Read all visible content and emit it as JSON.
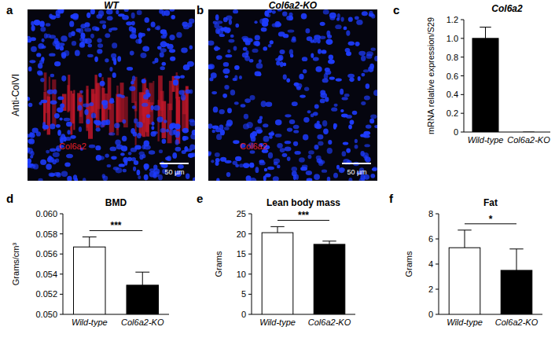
{
  "images": [
    {
      "panel_label": "a",
      "title": "WT",
      "side_label": "Anti-ColVI",
      "stain_label": "Col6a2",
      "scale_bar": "50 µm",
      "stained": true
    },
    {
      "panel_label": "b",
      "title": "Col6a2-KO",
      "stain_label": "Col6a2",
      "scale_bar": "50 µm",
      "stained": false
    }
  ],
  "chart_data": [
    {
      "type": "bar",
      "panel_label": "c",
      "title": "Col6a2",
      "y_label": "mRNA relative expression/S29",
      "categories": [
        "Wild-type",
        "Col6a2-KO"
      ],
      "values": [
        1.0,
        0
      ],
      "errors": [
        0.12,
        0
      ],
      "colors": [
        "#000000",
        "#000000"
      ],
      "ylim": [
        0,
        1.2
      ],
      "yticks": [
        0,
        {
          "value": 0.2,
          "label": "0.2"
        },
        {
          "value": 0.4,
          "label": "0.4"
        },
        {
          "value": 0.6,
          "label": "0.6"
        },
        {
          "value": 0.8,
          "label": "0.8"
        },
        {
          "value": 1,
          "label": "1.0"
        },
        {
          "value": 1.2,
          "label": "1.2"
        }
      ]
    },
    {
      "type": "bar",
      "panel_label": "d",
      "title": "BMD",
      "y_label": "Grams/cm³",
      "categories": [
        "Wild-type",
        "Col6a2-KO"
      ],
      "values": [
        0.0567,
        0.0529
      ],
      "errors": [
        0.001,
        0.0013
      ],
      "colors": [
        "#ffffff",
        "#000000"
      ],
      "ylim": [
        0.05,
        0.06
      ],
      "significance": "***",
      "yticks": [
        {
          "value": 0.05,
          "label": "0.050"
        },
        {
          "value": 0.052,
          "label": "0.052"
        },
        {
          "value": 0.054,
          "label": "0.054"
        },
        {
          "value": 0.056,
          "label": "0.056"
        },
        {
          "value": 0.058,
          "label": "0.058"
        },
        {
          "value": 0.06,
          "label": "0.060"
        }
      ]
    },
    {
      "type": "bar",
      "panel_label": "e",
      "title": "Lean body mass",
      "y_label": "Grams",
      "categories": [
        "Wild-type",
        "Col6a2-KO"
      ],
      "values": [
        20.3,
        17.4
      ],
      "errors": [
        1.5,
        0.8
      ],
      "colors": [
        "#ffffff",
        "#000000"
      ],
      "ylim": [
        0,
        25
      ],
      "significance": "***",
      "yticks": [
        0,
        5,
        10,
        15,
        20,
        25
      ]
    },
    {
      "type": "bar",
      "panel_label": "f",
      "title": "Fat",
      "y_label": "Grams",
      "categories": [
        "Wild-type",
        "Col6a2-KO"
      ],
      "values": [
        5.3,
        3.5
      ],
      "errors": [
        1.4,
        1.7
      ],
      "colors": [
        "#ffffff",
        "#000000"
      ],
      "ylim": [
        0,
        8
      ],
      "significance": "*",
      "yticks": [
        0,
        2,
        4,
        6,
        8
      ]
    }
  ]
}
